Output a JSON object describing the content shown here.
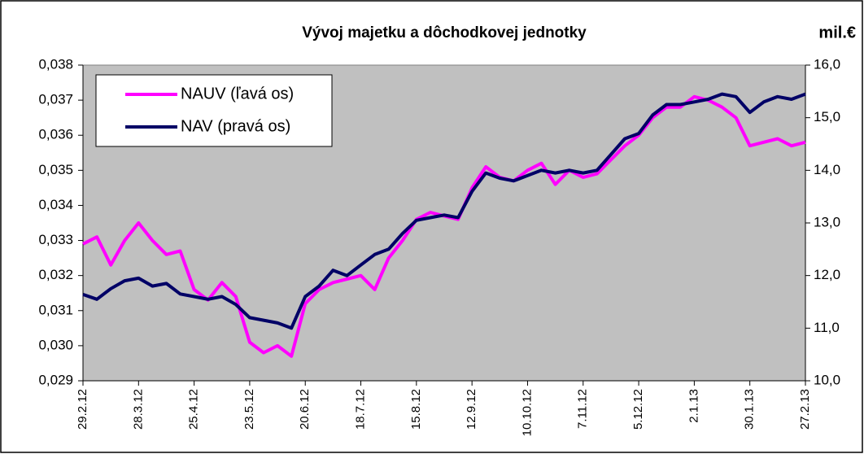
{
  "chart_data": {
    "type": "line",
    "title": "Vývoj majetku a dôchodkovej jednotky",
    "y2label": "mil.€",
    "categories": [
      "29.2.12",
      null,
      null,
      null,
      "28.3.12",
      null,
      null,
      null,
      "25.4.12",
      null,
      null,
      null,
      "23.5.12",
      null,
      null,
      null,
      "20.6.12",
      null,
      null,
      null,
      "18.7.12",
      null,
      null,
      null,
      "15.8.12",
      null,
      null,
      null,
      "12.9.12",
      null,
      null,
      null,
      "10.10.12",
      null,
      null,
      null,
      "7.11.12",
      null,
      null,
      null,
      "5.12.12",
      null,
      null,
      null,
      "2.1.13",
      null,
      null,
      null,
      "30.1.13",
      null,
      null,
      null,
      "27.2.13"
    ],
    "series": [
      {
        "name": "NAUV (ľavá os)",
        "color": "#ff00ff",
        "values": [
          0.0329,
          0.0331,
          0.0323,
          0.033,
          0.0335,
          0.033,
          0.0326,
          0.0327,
          0.0316,
          0.0313,
          0.0318,
          0.0314,
          0.0301,
          0.0298,
          0.03,
          0.0297,
          0.0312,
          0.0316,
          0.0318,
          0.0319,
          0.032,
          0.0316,
          0.0325,
          0.033,
          0.0336,
          0.0338,
          0.0337,
          0.0336,
          0.0345,
          0.0351,
          0.0348,
          0.0347,
          0.035,
          0.0352,
          0.0346,
          0.035,
          0.0348,
          0.0349,
          0.0353,
          0.0357,
          0.036,
          0.0365,
          0.0368,
          0.0368,
          0.0371,
          0.037,
          0.0368,
          0.0365,
          0.0357,
          0.0358,
          0.0359,
          0.0357,
          0.0358
        ]
      },
      {
        "name": "NAV (pravá os)",
        "color": "#000066",
        "axis": "y2",
        "values": [
          11.64,
          11.55,
          11.75,
          11.9,
          11.95,
          11.8,
          11.85,
          11.65,
          11.6,
          11.55,
          11.6,
          11.45,
          11.2,
          11.15,
          11.1,
          11.0,
          11.6,
          11.8,
          12.1,
          12.0,
          12.2,
          12.4,
          12.5,
          12.8,
          13.05,
          13.1,
          13.15,
          13.1,
          13.6,
          13.95,
          13.85,
          13.8,
          13.9,
          14.0,
          13.95,
          14.0,
          13.95,
          14.0,
          14.3,
          14.6,
          14.7,
          15.05,
          15.25,
          15.25,
          15.3,
          15.35,
          15.45,
          15.4,
          15.1,
          15.3,
          15.4,
          15.35,
          15.45
        ]
      }
    ],
    "ylim": [
      0.029,
      0.038
    ],
    "yticks": [
      {
        "value": 0.029,
        "label": "0,029"
      },
      {
        "value": 0.03,
        "label": "0,030"
      },
      {
        "value": 0.031,
        "label": "0,031"
      },
      {
        "value": 0.032,
        "label": "0,032"
      },
      {
        "value": 0.033,
        "label": "0,033"
      },
      {
        "value": 0.034,
        "label": "0,034"
      },
      {
        "value": 0.035,
        "label": "0,035"
      },
      {
        "value": 0.036,
        "label": "0,036"
      },
      {
        "value": 0.037,
        "label": "0,037"
      },
      {
        "value": 0.038,
        "label": "0,038"
      }
    ],
    "y2lim": [
      10,
      16
    ],
    "y2ticks": [
      {
        "value": 10,
        "label": "10,0"
      },
      {
        "value": 11,
        "label": "11,0"
      },
      {
        "value": 12,
        "label": "12,0"
      },
      {
        "value": 13,
        "label": "13,0"
      },
      {
        "value": 14,
        "label": "14,0"
      },
      {
        "value": 15,
        "label": "15,0"
      },
      {
        "value": 16,
        "label": "16,0"
      }
    ],
    "legend": "top-left",
    "plot_background": "#c0c0c0"
  }
}
